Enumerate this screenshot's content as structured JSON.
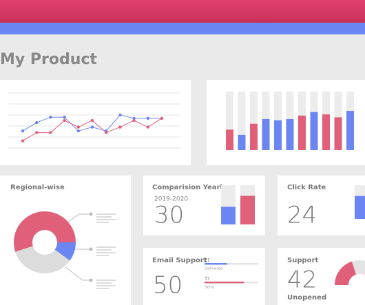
{
  "header": {
    "title": "My Product"
  },
  "line_chart": {
    "ylim": [
      0,
      10
    ],
    "series": [
      {
        "color": "#6b86f2",
        "values": [
          3.1,
          4.6,
          5.6,
          5.6,
          3.1,
          3.8,
          3.1,
          6,
          5.4,
          5.4,
          5.4
        ]
      },
      {
        "color": "#e0607a",
        "values": [
          1.3,
          2.8,
          2.8,
          5,
          3.8,
          5,
          2.8,
          3.8,
          5,
          3.8,
          5.4
        ]
      }
    ]
  },
  "bar_chart": {
    "ylim": [
      0,
      100
    ],
    "values": [
      35,
      26,
      45,
      53,
      51,
      53,
      59,
      65,
      61,
      56,
      67
    ],
    "colors": [
      "#e0607a",
      "#6b86f2",
      "#e0607a",
      "#6b86f2",
      "#6b86f2",
      "#6b86f2",
      "#e0607a",
      "#6b86f2",
      "#e0607a",
      "#e0607a",
      "#6b86f2"
    ]
  },
  "regional": {
    "title": "Regional-wise",
    "values": [
      55,
      10,
      35
    ],
    "colors": [
      "#e0607a",
      "#6b86f2",
      "#dcdcdc"
    ]
  },
  "comparison": {
    "title": "Comparision Yearly",
    "period": "2019-2020",
    "value": 30,
    "ylim": [
      0,
      100
    ],
    "bars": [
      {
        "color": "#6b86f2",
        "value": 45
      },
      {
        "color": "#e0607a",
        "value": 73
      }
    ]
  },
  "click_rate": {
    "title": "Click Rate",
    "value": 24,
    "ylim": [
      0,
      100
    ],
    "bar": {
      "color": "#6b86f2",
      "value": 68
    }
  },
  "email_support": {
    "title": "Email Support",
    "value": 50,
    "items": [
      {
        "value": 21,
        "label": "Delivered",
        "color": "#6b86f2"
      },
      {
        "value": 37,
        "label": "Send",
        "color": "#e0607a"
      }
    ]
  },
  "support": {
    "title": "Support",
    "value": 42,
    "label": "Unopened",
    "gauge": 40
  }
}
